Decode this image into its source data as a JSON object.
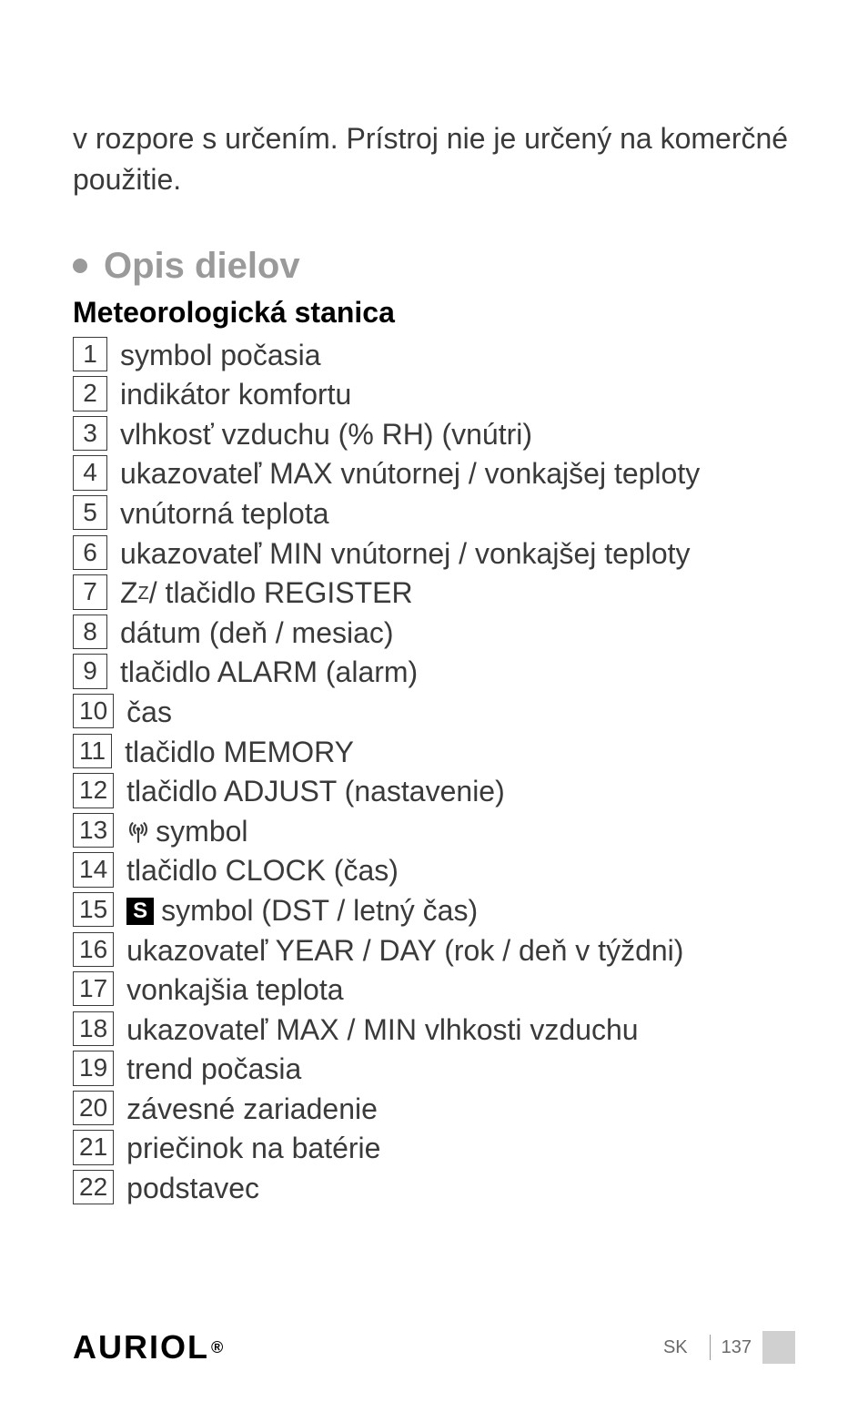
{
  "intro": "v rozpore s určením. Prístroj nie je určený na komerčné použitie.",
  "section": {
    "title": "Opis dielov",
    "subtitle": "Meteorologická stanica"
  },
  "items": [
    {
      "num": "1",
      "text": "symbol počasia"
    },
    {
      "num": "2",
      "text": "indikátor komfortu"
    },
    {
      "num": "3",
      "text": "vlhkosť vzduchu (% RH) (vnútri)"
    },
    {
      "num": "4",
      "text": "ukazovateľ MAX vnútornej / vonkajšej teploty"
    },
    {
      "num": "5",
      "text": "vnútorná teplota"
    },
    {
      "num": "6",
      "text": "ukazovateľ MIN vnútornej / vonkajšej teploty"
    },
    {
      "num": "7",
      "prefix": "Z",
      "super": "Z",
      "text": " / tlačidlo REGISTER"
    },
    {
      "num": "8",
      "text": "dátum (deň / mesiac)"
    },
    {
      "num": "9",
      "text": "tlačidlo ALARM (alarm)"
    },
    {
      "num": "10",
      "text": "čas"
    },
    {
      "num": "11",
      "text": "tlačidlo MEMORY"
    },
    {
      "num": "12",
      "text": "tlačidlo ADJUST (nastavenie)"
    },
    {
      "num": "13",
      "icon": "radio",
      "text": " symbol"
    },
    {
      "num": "14",
      "text": "tlačidlo CLOCK (čas)"
    },
    {
      "num": "15",
      "icon": "s-box",
      "icon_text": "S",
      "text": " symbol (DST / letný čas)"
    },
    {
      "num": "16",
      "text": "ukazovateľ YEAR / DAY (rok / deň v týždni)"
    },
    {
      "num": "17",
      "text": "vonkajšia teplota"
    },
    {
      "num": "18",
      "text": "ukazovateľ MAX / MIN vlhkosti vzduchu"
    },
    {
      "num": "19",
      "text": "trend počasia"
    },
    {
      "num": "20",
      "text": "závesné zariadenie"
    },
    {
      "num": "21",
      "text": "priečinok na batérie"
    },
    {
      "num": "22",
      "text": "podstavec"
    }
  ],
  "footer": {
    "brand": "AURIOL",
    "lang": "SK",
    "page": "137"
  },
  "colors": {
    "text": "#3a3a3a",
    "heading_gray": "#9a9a9a",
    "black": "#000000",
    "box_bg": "#d0d0d0"
  }
}
